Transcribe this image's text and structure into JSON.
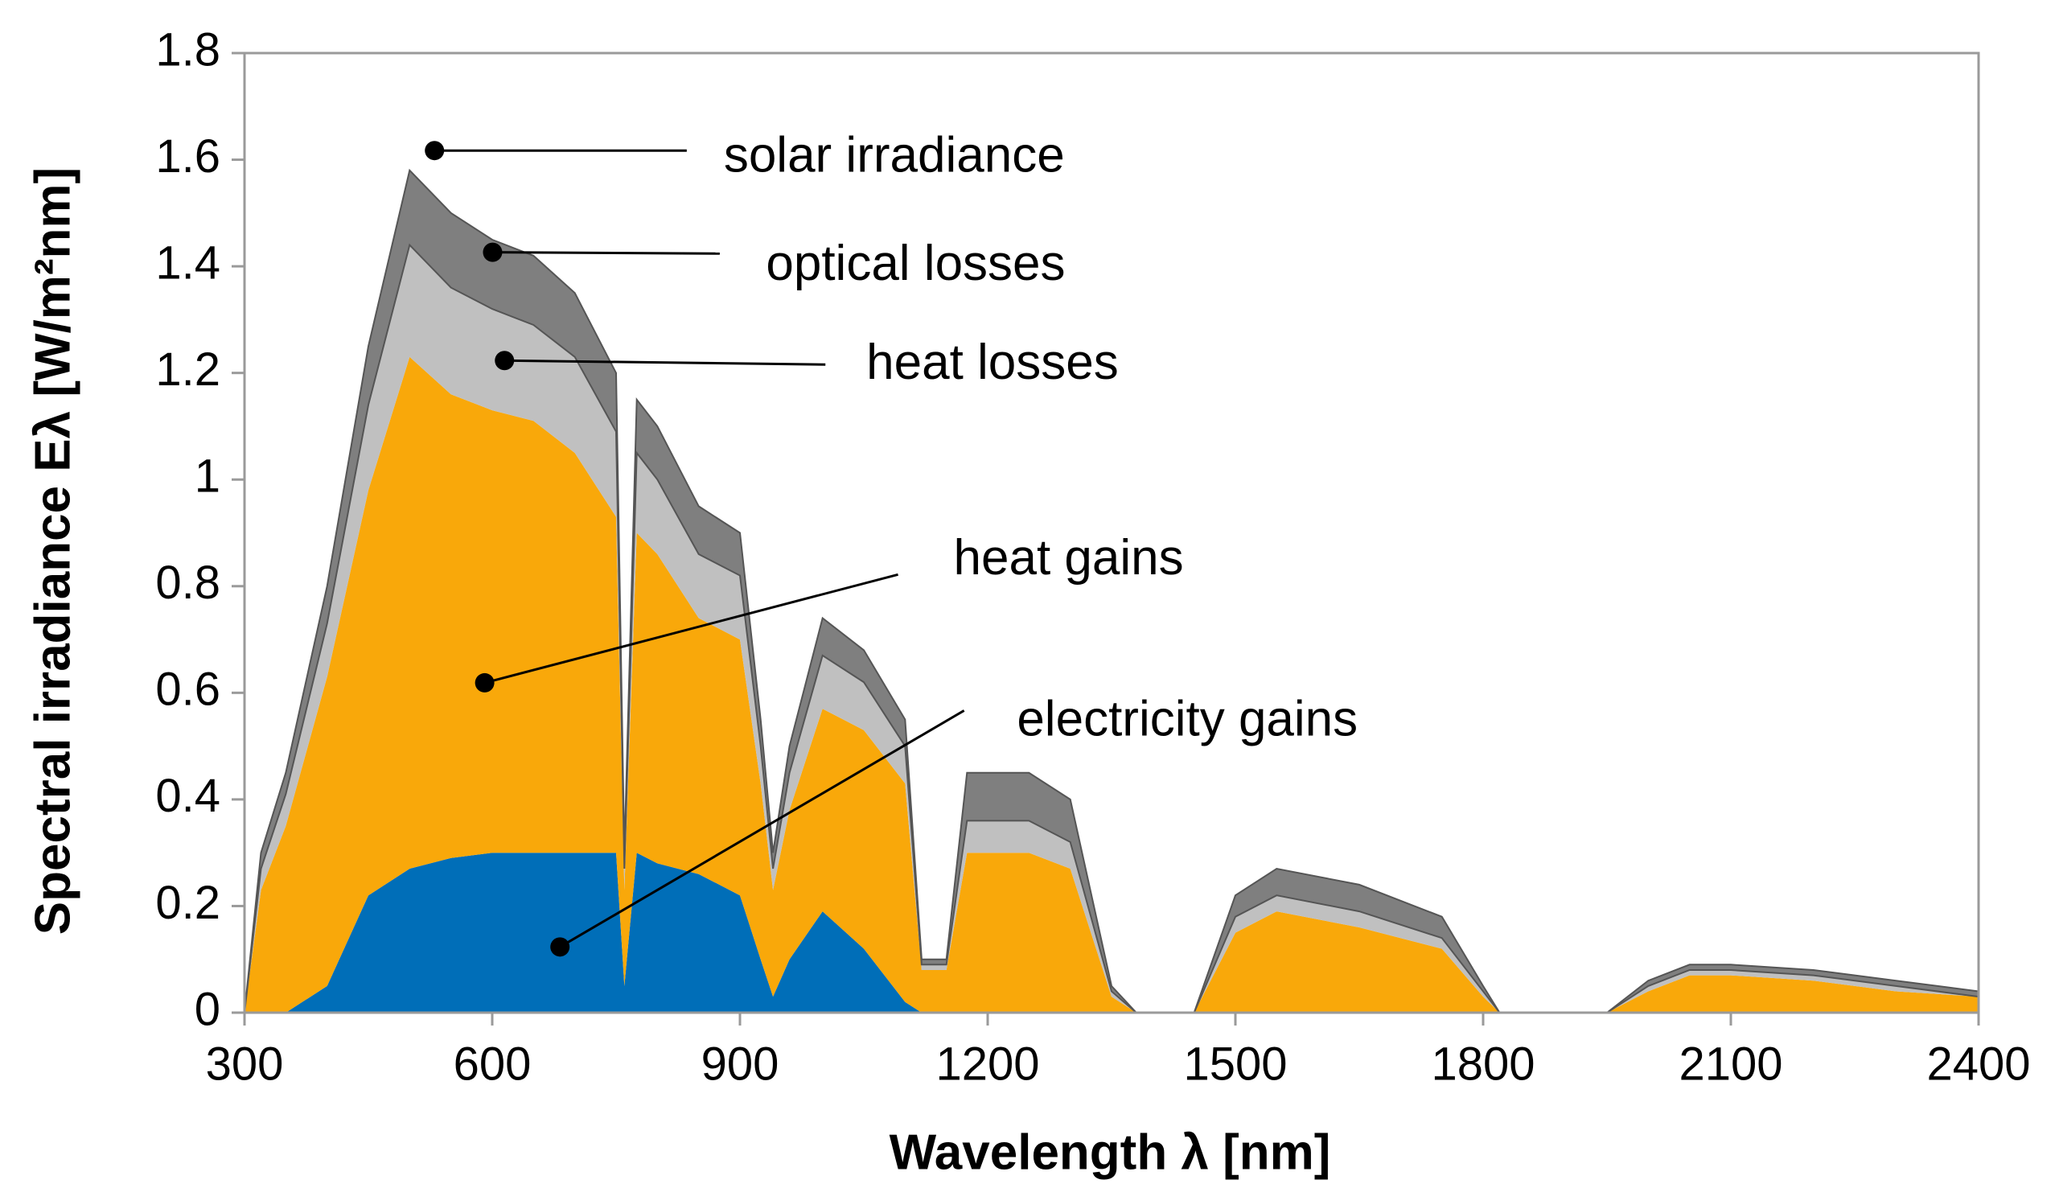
{
  "chart_data": {
    "type": "stacked-area",
    "xlabel": "Wavelength λ [nm]",
    "ylabel": "Spectral irradiance Eλ [W/m²nm]",
    "annotations": [
      "solar irradiance"
    ],
    "x": [
      300,
      320,
      350,
      400,
      450,
      500,
      550,
      600,
      650,
      700,
      750,
      760,
      775,
      800,
      850,
      900,
      925,
      940,
      960,
      1000,
      1050,
      1100,
      1120,
      1150,
      1175,
      1250,
      1300,
      1350,
      1380,
      1450,
      1500,
      1550,
      1650,
      1750,
      1800,
      1820,
      1950,
      2000,
      2050,
      2100,
      2200,
      2300,
      2400
    ],
    "series": [
      {
        "name": "electricity gains",
        "color": "#006eb8",
        "values": [
          0,
          0,
          0,
          0.05,
          0.22,
          0.27,
          0.29,
          0.3,
          0.3,
          0.3,
          0.3,
          0.05,
          0.3,
          0.28,
          0.26,
          0.22,
          0.1,
          0.03,
          0.1,
          0.19,
          0.12,
          0.02,
          0,
          0,
          0,
          0,
          0,
          0,
          0,
          0,
          0,
          0,
          0,
          0,
          0,
          0,
          0,
          0,
          0,
          0,
          0,
          0,
          0
        ]
      },
      {
        "name": "heat gains",
        "color": "#f9a80a",
        "values": [
          0,
          0.23,
          0.35,
          0.58,
          0.76,
          0.96,
          0.87,
          0.83,
          0.81,
          0.75,
          0.63,
          0.18,
          0.6,
          0.58,
          0.48,
          0.48,
          0.33,
          0.2,
          0.28,
          0.38,
          0.41,
          0.41,
          0.08,
          0.08,
          0.3,
          0.3,
          0.27,
          0.03,
          0,
          0,
          0.15,
          0.19,
          0.16,
          0.12,
          0.03,
          0,
          0,
          0.04,
          0.07,
          0.07,
          0.06,
          0.04,
          0.03
        ]
      },
      {
        "name": "heat losses",
        "color": "#c0c0c0",
        "values": [
          0,
          0.04,
          0.06,
          0.1,
          0.16,
          0.21,
          0.2,
          0.19,
          0.18,
          0.18,
          0.16,
          0.04,
          0.15,
          0.14,
          0.12,
          0.12,
          0.07,
          0.04,
          0.07,
          0.1,
          0.09,
          0.07,
          0.01,
          0.01,
          0.06,
          0.06,
          0.05,
          0.01,
          0,
          0,
          0.03,
          0.03,
          0.03,
          0.02,
          0.01,
          0,
          0,
          0.01,
          0.01,
          0.01,
          0.01,
          0.01,
          0
        ]
      },
      {
        "name": "optical losses",
        "color": "#7f7f7f",
        "values": [
          0,
          0.03,
          0.04,
          0.07,
          0.11,
          0.14,
          0.14,
          0.13,
          0.13,
          0.12,
          0.11,
          0.03,
          0.1,
          0.1,
          0.09,
          0.08,
          0.05,
          0.03,
          0.05,
          0.07,
          0.06,
          0.05,
          0.01,
          0.01,
          0.09,
          0.09,
          0.08,
          0.01,
          0,
          0,
          0.04,
          0.05,
          0.05,
          0.04,
          0.01,
          0,
          0,
          0.01,
          0.01,
          0.01,
          0.01,
          0.01,
          0.01
        ]
      }
    ],
    "xlim": [
      300,
      2400
    ],
    "xticks": [
      300,
      600,
      900,
      1200,
      1500,
      1800,
      2100,
      2400
    ],
    "ylim": [
      0,
      1.8
    ],
    "yticks": [
      0,
      0.2,
      0.4,
      0.6,
      0.8,
      1,
      1.2,
      1.4,
      1.6,
      1.8
    ]
  }
}
